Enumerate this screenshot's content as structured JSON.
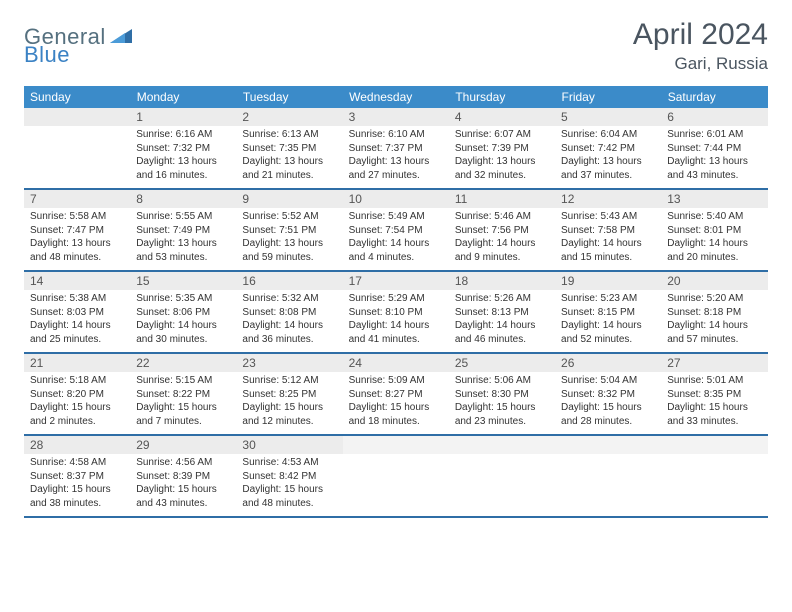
{
  "logo": {
    "word1": "General",
    "word2": "Blue"
  },
  "title": "April 2024",
  "subtitle": "Gari, Russia",
  "colors": {
    "header_bg": "#3b8bc9",
    "week_divider": "#2f6ea6",
    "daynum_bg": "#ececec",
    "text": "#333333",
    "title_color": "#4a5560"
  },
  "typography": {
    "title_fontsize": 30,
    "subtitle_fontsize": 17,
    "dow_fontsize": 12,
    "cell_fontsize": 10
  },
  "days_of_week": [
    "Sunday",
    "Monday",
    "Tuesday",
    "Wednesday",
    "Thursday",
    "Friday",
    "Saturday"
  ],
  "weeks": [
    [
      null,
      {
        "n": "1",
        "sr": "6:16 AM",
        "ss": "7:32 PM",
        "dl": "13 hours and 16 minutes."
      },
      {
        "n": "2",
        "sr": "6:13 AM",
        "ss": "7:35 PM",
        "dl": "13 hours and 21 minutes."
      },
      {
        "n": "3",
        "sr": "6:10 AM",
        "ss": "7:37 PM",
        "dl": "13 hours and 27 minutes."
      },
      {
        "n": "4",
        "sr": "6:07 AM",
        "ss": "7:39 PM",
        "dl": "13 hours and 32 minutes."
      },
      {
        "n": "5",
        "sr": "6:04 AM",
        "ss": "7:42 PM",
        "dl": "13 hours and 37 minutes."
      },
      {
        "n": "6",
        "sr": "6:01 AM",
        "ss": "7:44 PM",
        "dl": "13 hours and 43 minutes."
      }
    ],
    [
      {
        "n": "7",
        "sr": "5:58 AM",
        "ss": "7:47 PM",
        "dl": "13 hours and 48 minutes."
      },
      {
        "n": "8",
        "sr": "5:55 AM",
        "ss": "7:49 PM",
        "dl": "13 hours and 53 minutes."
      },
      {
        "n": "9",
        "sr": "5:52 AM",
        "ss": "7:51 PM",
        "dl": "13 hours and 59 minutes."
      },
      {
        "n": "10",
        "sr": "5:49 AM",
        "ss": "7:54 PM",
        "dl": "14 hours and 4 minutes."
      },
      {
        "n": "11",
        "sr": "5:46 AM",
        "ss": "7:56 PM",
        "dl": "14 hours and 9 minutes."
      },
      {
        "n": "12",
        "sr": "5:43 AM",
        "ss": "7:58 PM",
        "dl": "14 hours and 15 minutes."
      },
      {
        "n": "13",
        "sr": "5:40 AM",
        "ss": "8:01 PM",
        "dl": "14 hours and 20 minutes."
      }
    ],
    [
      {
        "n": "14",
        "sr": "5:38 AM",
        "ss": "8:03 PM",
        "dl": "14 hours and 25 minutes."
      },
      {
        "n": "15",
        "sr": "5:35 AM",
        "ss": "8:06 PM",
        "dl": "14 hours and 30 minutes."
      },
      {
        "n": "16",
        "sr": "5:32 AM",
        "ss": "8:08 PM",
        "dl": "14 hours and 36 minutes."
      },
      {
        "n": "17",
        "sr": "5:29 AM",
        "ss": "8:10 PM",
        "dl": "14 hours and 41 minutes."
      },
      {
        "n": "18",
        "sr": "5:26 AM",
        "ss": "8:13 PM",
        "dl": "14 hours and 46 minutes."
      },
      {
        "n": "19",
        "sr": "5:23 AM",
        "ss": "8:15 PM",
        "dl": "14 hours and 52 minutes."
      },
      {
        "n": "20",
        "sr": "5:20 AM",
        "ss": "8:18 PM",
        "dl": "14 hours and 57 minutes."
      }
    ],
    [
      {
        "n": "21",
        "sr": "5:18 AM",
        "ss": "8:20 PM",
        "dl": "15 hours and 2 minutes."
      },
      {
        "n": "22",
        "sr": "5:15 AM",
        "ss": "8:22 PM",
        "dl": "15 hours and 7 minutes."
      },
      {
        "n": "23",
        "sr": "5:12 AM",
        "ss": "8:25 PM",
        "dl": "15 hours and 12 minutes."
      },
      {
        "n": "24",
        "sr": "5:09 AM",
        "ss": "8:27 PM",
        "dl": "15 hours and 18 minutes."
      },
      {
        "n": "25",
        "sr": "5:06 AM",
        "ss": "8:30 PM",
        "dl": "15 hours and 23 minutes."
      },
      {
        "n": "26",
        "sr": "5:04 AM",
        "ss": "8:32 PM",
        "dl": "15 hours and 28 minutes."
      },
      {
        "n": "27",
        "sr": "5:01 AM",
        "ss": "8:35 PM",
        "dl": "15 hours and 33 minutes."
      }
    ],
    [
      {
        "n": "28",
        "sr": "4:58 AM",
        "ss": "8:37 PM",
        "dl": "15 hours and 38 minutes."
      },
      {
        "n": "29",
        "sr": "4:56 AM",
        "ss": "8:39 PM",
        "dl": "15 hours and 43 minutes."
      },
      {
        "n": "30",
        "sr": "4:53 AM",
        "ss": "8:42 PM",
        "dl": "15 hours and 48 minutes."
      },
      null,
      null,
      null,
      null
    ]
  ],
  "labels": {
    "sunrise": "Sunrise: ",
    "sunset": "Sunset: ",
    "daylight": "Daylight: "
  }
}
